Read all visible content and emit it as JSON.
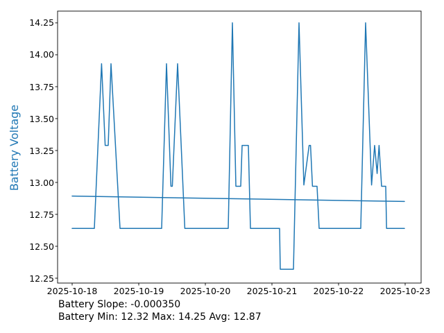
{
  "chart_data": {
    "type": "line",
    "title": "",
    "ylabel": "Battery Voltage",
    "xlabel": "",
    "grid": false,
    "legend": "none",
    "line_color": "#1f77b4",
    "axis_color": "#000000",
    "x_tick_labels": [
      "2025-10-18",
      "2025-10-19",
      "2025-10-20",
      "2025-10-21",
      "2025-10-22",
      "2025-10-23"
    ],
    "x_tick_positions_hours": [
      0,
      24,
      48,
      72,
      96,
      120
    ],
    "x_range_hours": [
      -5.25,
      125.75
    ],
    "y_ticks": [
      12.25,
      12.5,
      12.75,
      13.0,
      13.25,
      13.5,
      13.75,
      14.0,
      14.25
    ],
    "y_tick_labels": [
      "12.25",
      "12.50",
      "12.75",
      "13.00",
      "13.25",
      "13.50",
      "13.75",
      "14.00",
      "14.25"
    ],
    "y_range": [
      12.212,
      14.342
    ],
    "series": [
      {
        "name": "battery_voltage",
        "x_unit": "hours since 2025-10-18 00:00",
        "points": [
          [
            0,
            12.64
          ],
          [
            8,
            12.64
          ],
          [
            10.6,
            13.93
          ],
          [
            11.9,
            13.29
          ],
          [
            13,
            13.29
          ],
          [
            14,
            13.93
          ],
          [
            17.25,
            12.64
          ],
          [
            32.25,
            12.64
          ],
          [
            34,
            13.93
          ],
          [
            35.6,
            12.97
          ],
          [
            36.1,
            12.97
          ],
          [
            38,
            13.93
          ],
          [
            40.6,
            12.64
          ],
          [
            56.25,
            12.64
          ],
          [
            57.75,
            14.25
          ],
          [
            59,
            12.97
          ],
          [
            60.75,
            12.97
          ],
          [
            61.25,
            13.29
          ],
          [
            63.5,
            13.29
          ],
          [
            64.25,
            12.64
          ],
          [
            74.75,
            12.64
          ],
          [
            75,
            12.32
          ],
          [
            79.75,
            12.32
          ],
          [
            81.75,
            14.25
          ],
          [
            83.5,
            12.98
          ],
          [
            85.4,
            13.29
          ],
          [
            85.9,
            13.29
          ],
          [
            86.6,
            12.97
          ],
          [
            88.25,
            12.97
          ],
          [
            89,
            12.64
          ],
          [
            104,
            12.64
          ],
          [
            105.75,
            14.25
          ],
          [
            107.9,
            12.98
          ],
          [
            109,
            13.29
          ],
          [
            109.9,
            13.07
          ],
          [
            110.6,
            13.29
          ],
          [
            111.5,
            12.97
          ],
          [
            113,
            12.97
          ],
          [
            113.3,
            12.64
          ],
          [
            119.75,
            12.64
          ]
        ]
      },
      {
        "name": "trend_line",
        "x_unit": "hours since 2025-10-18 00:00",
        "points": [
          [
            0,
            12.893
          ],
          [
            119.75,
            12.851
          ]
        ]
      }
    ],
    "annotations": [
      "Battery Slope: -0.000350",
      "Battery Min: 12.32 Max: 14.25 Avg: 12.87"
    ]
  }
}
